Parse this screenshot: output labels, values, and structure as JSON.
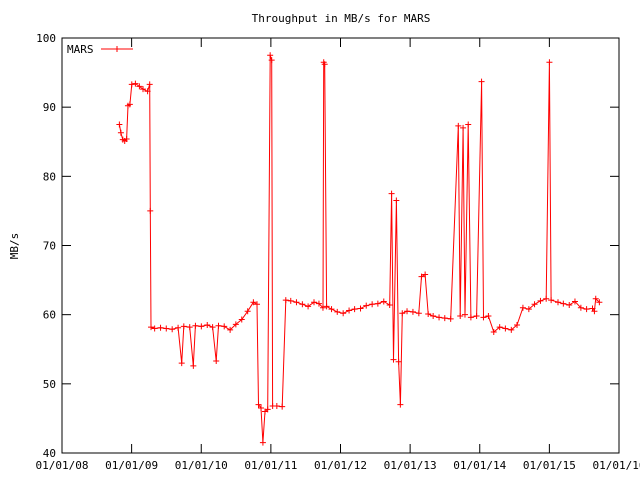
{
  "chart_data": {
    "type": "line",
    "title": "Throughput in MB/s for MARS",
    "xlabel": "",
    "ylabel": "MB/s",
    "ylim": [
      40,
      100
    ],
    "yticks": [
      40,
      50,
      60,
      70,
      80,
      90,
      100
    ],
    "xticks": [
      "01/01/08",
      "01/01/09",
      "01/01/10",
      "01/01/11",
      "01/01/12",
      "01/01/13",
      "01/01/14",
      "01/01/15",
      "01/01/16"
    ],
    "xlim": [
      "2008-01-01",
      "2016-01-01"
    ],
    "legend": "top-left",
    "series": [
      {
        "name": "MARS",
        "color": "#ff0000",
        "marker": "plus",
        "points": [
          [
            "2008-10-28",
            87.5
          ],
          [
            "2008-11-05",
            86.3
          ],
          [
            "2008-11-15",
            85.3
          ],
          [
            "2008-11-25",
            85.1
          ],
          [
            "2008-12-05",
            85.4
          ],
          [
            "2008-12-12",
            90.2
          ],
          [
            "2008-12-22",
            90.4
          ],
          [
            "2009-01-01",
            93.3
          ],
          [
            "2009-01-20",
            93.4
          ],
          [
            "2009-02-10",
            93.0
          ],
          [
            "2009-03-01",
            92.6
          ],
          [
            "2009-03-25",
            92.3
          ],
          [
            "2009-04-05",
            93.3
          ],
          [
            "2009-04-08",
            75.0
          ],
          [
            "2009-04-12",
            58.2
          ],
          [
            "2009-05-01",
            58.0
          ],
          [
            "2009-06-01",
            58.1
          ],
          [
            "2009-07-01",
            58.0
          ],
          [
            "2009-08-01",
            57.9
          ],
          [
            "2009-09-01",
            58.1
          ],
          [
            "2009-09-20",
            53.0
          ],
          [
            "2009-10-01",
            58.3
          ],
          [
            "2009-11-01",
            58.2
          ],
          [
            "2009-11-20",
            52.6
          ],
          [
            "2009-12-01",
            58.4
          ],
          [
            "2010-01-01",
            58.3
          ],
          [
            "2010-02-01",
            58.5
          ],
          [
            "2010-03-01",
            58.2
          ],
          [
            "2010-03-20",
            53.3
          ],
          [
            "2010-04-01",
            58.4
          ],
          [
            "2010-05-01",
            58.3
          ],
          [
            "2010-06-01",
            57.8
          ],
          [
            "2010-07-01",
            58.6
          ],
          [
            "2010-08-01",
            59.3
          ],
          [
            "2010-09-01",
            60.5
          ],
          [
            "2010-10-01",
            61.8
          ],
          [
            "2010-10-20",
            61.5
          ],
          [
            "2010-10-28",
            47.0
          ],
          [
            "2010-11-10",
            46.5
          ],
          [
            "2010-11-20",
            41.5
          ],
          [
            "2010-12-01",
            46.0
          ],
          [
            "2010-12-15",
            46.3
          ],
          [
            "2010-12-28",
            97.5
          ],
          [
            "2011-01-05",
            96.8
          ],
          [
            "2011-01-10",
            46.8
          ],
          [
            "2011-02-01",
            46.8
          ],
          [
            "2011-03-01",
            46.7
          ],
          [
            "2011-03-20",
            62.1
          ],
          [
            "2011-04-15",
            62.0
          ],
          [
            "2011-05-15",
            61.8
          ],
          [
            "2011-06-15",
            61.5
          ],
          [
            "2011-07-15",
            61.2
          ],
          [
            "2011-08-15",
            61.8
          ],
          [
            "2011-09-10",
            61.6
          ],
          [
            "2011-10-01",
            61.0
          ],
          [
            "2011-10-05",
            96.5
          ],
          [
            "2011-10-10",
            96.2
          ],
          [
            "2011-10-20",
            61.2
          ],
          [
            "2011-11-15",
            60.8
          ],
          [
            "2011-12-15",
            60.4
          ],
          [
            "2012-01-15",
            60.2
          ],
          [
            "2012-02-15",
            60.6
          ],
          [
            "2012-03-15",
            60.8
          ],
          [
            "2012-04-15",
            60.9
          ],
          [
            "2012-05-15",
            61.3
          ],
          [
            "2012-06-15",
            61.5
          ],
          [
            "2012-07-15",
            61.6
          ],
          [
            "2012-08-15",
            61.9
          ],
          [
            "2012-09-15",
            61.4
          ],
          [
            "2012-09-25",
            77.5
          ],
          [
            "2012-10-05",
            53.5
          ],
          [
            "2012-10-20",
            76.5
          ],
          [
            "2012-11-01",
            53.2
          ],
          [
            "2012-11-10",
            47.0
          ],
          [
            "2012-11-20",
            60.2
          ],
          [
            "2012-12-15",
            60.5
          ],
          [
            "2013-01-15",
            60.4
          ],
          [
            "2013-02-15",
            60.2
          ],
          [
            "2013-03-01",
            65.5
          ],
          [
            "2013-03-20",
            65.8
          ],
          [
            "2013-04-05",
            60.1
          ],
          [
            "2013-05-01",
            59.8
          ],
          [
            "2013-06-01",
            59.6
          ],
          [
            "2013-07-01",
            59.5
          ],
          [
            "2013-08-01",
            59.4
          ],
          [
            "2013-09-10",
            87.3
          ],
          [
            "2013-09-20",
            59.8
          ],
          [
            "2013-10-05",
            87.0
          ],
          [
            "2013-10-15",
            60.0
          ],
          [
            "2013-11-01",
            87.5
          ],
          [
            "2013-11-15",
            59.6
          ],
          [
            "2013-12-15",
            59.8
          ],
          [
            "2014-01-10",
            93.7
          ],
          [
            "2014-01-20",
            59.6
          ],
          [
            "2014-02-15",
            59.8
          ],
          [
            "2014-03-15",
            57.5
          ],
          [
            "2014-04-15",
            58.2
          ],
          [
            "2014-05-15",
            58.0
          ],
          [
            "2014-06-15",
            57.8
          ],
          [
            "2014-07-15",
            58.5
          ],
          [
            "2014-08-15",
            61.0
          ],
          [
            "2014-09-15",
            60.8
          ],
          [
            "2014-10-15",
            61.5
          ],
          [
            "2014-11-15",
            62.0
          ],
          [
            "2014-12-15",
            62.3
          ],
          [
            "2015-01-01",
            96.5
          ],
          [
            "2015-01-10",
            62.1
          ],
          [
            "2015-02-15",
            61.8
          ],
          [
            "2015-03-15",
            61.6
          ],
          [
            "2015-04-15",
            61.4
          ],
          [
            "2015-05-15",
            61.9
          ],
          [
            "2015-06-15",
            61.0
          ],
          [
            "2015-07-15",
            60.8
          ],
          [
            "2015-08-15",
            60.9
          ],
          [
            "2015-08-25",
            60.5
          ],
          [
            "2015-09-01",
            62.3
          ],
          [
            "2015-09-20",
            61.8
          ]
        ]
      }
    ]
  }
}
